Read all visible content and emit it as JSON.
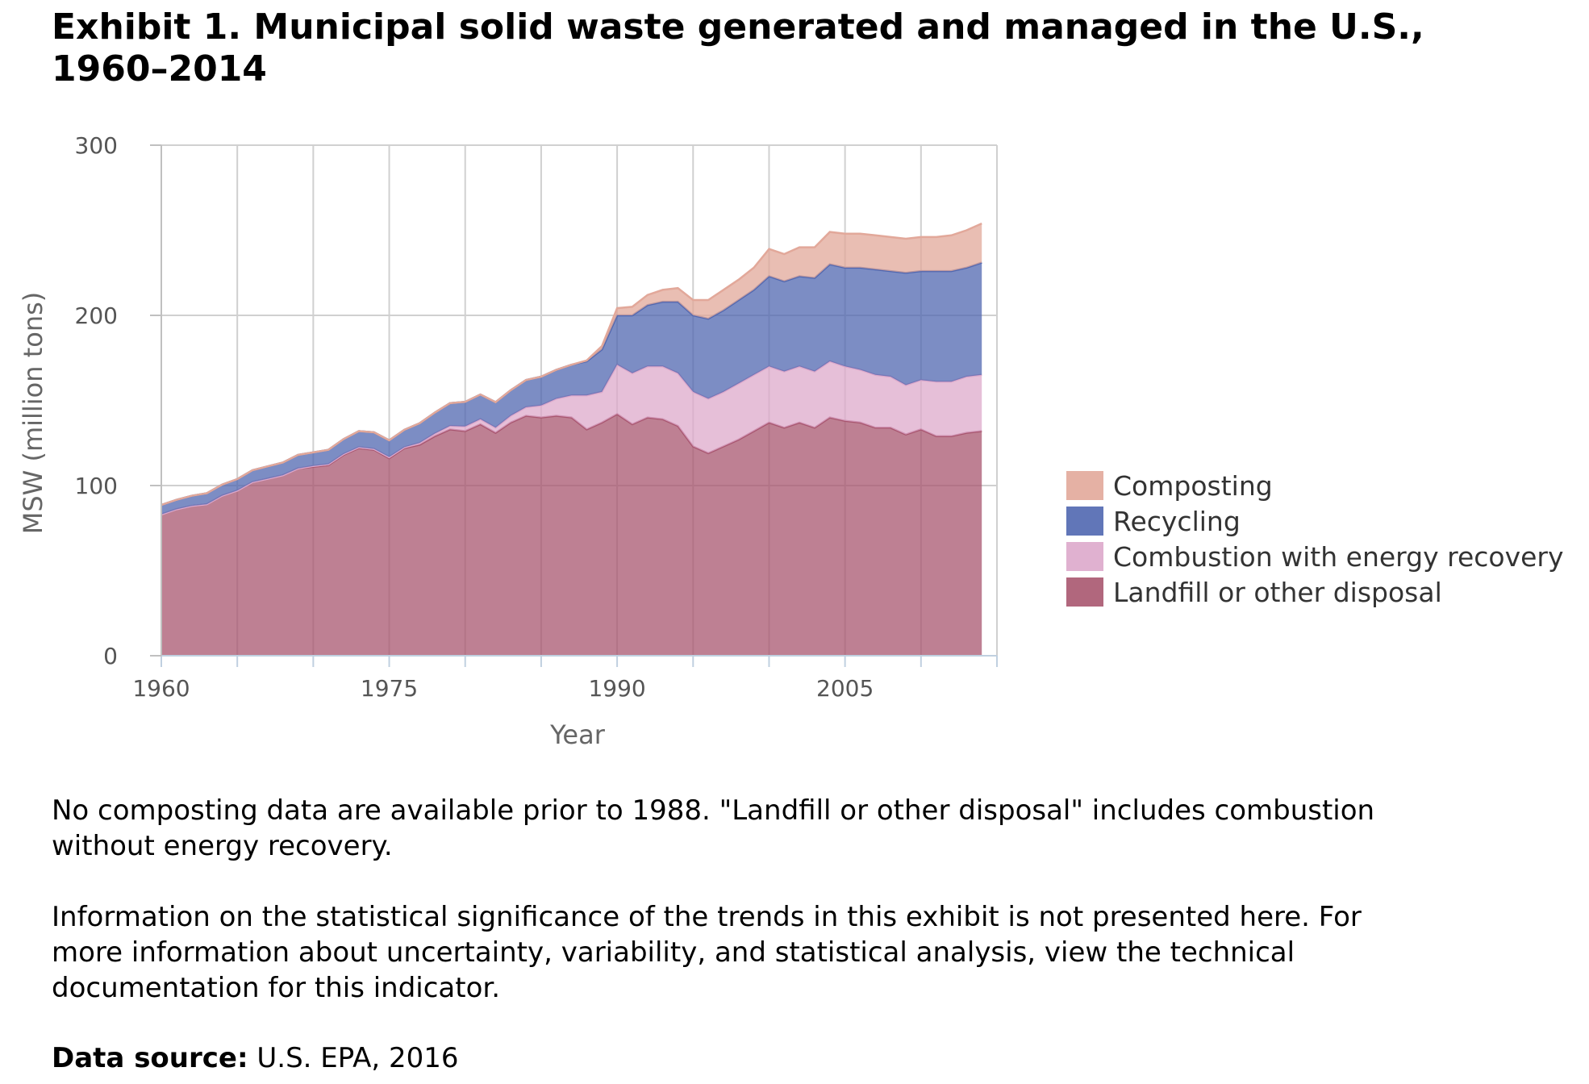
{
  "title": "Exhibit 1. Municipal solid waste generated and managed in the U.S., 1960–2014",
  "notes": {
    "note1": "No composting data are available prior to 1988. \"Landfill or other disposal\" includes combustion without energy recovery.",
    "note2": "Information on the statistical significance of the trends in this exhibit is not presented here. For more information about uncertainty, variability, and statistical analysis, view the technical documentation for this indicator.",
    "source_label": "Data source:",
    "source_value": " U.S. EPA, 2016"
  },
  "chart_data": {
    "type": "area",
    "stacked": true,
    "xlabel": "Year",
    "ylabel": "MSW (million tons)",
    "xlim": [
      1960,
      2015
    ],
    "ylim": [
      0,
      300
    ],
    "x_ticks": [
      1960,
      1975,
      1990,
      2005
    ],
    "y_ticks": [
      0,
      100,
      200,
      300
    ],
    "grid": true,
    "legend_position": "right",
    "x": [
      1960,
      1961,
      1962,
      1963,
      1964,
      1965,
      1966,
      1967,
      1968,
      1969,
      1970,
      1971,
      1972,
      1973,
      1974,
      1975,
      1976,
      1977,
      1978,
      1979,
      1980,
      1981,
      1982,
      1983,
      1984,
      1985,
      1986,
      1987,
      1988,
      1989,
      1990,
      1991,
      1992,
      1993,
      1994,
      1995,
      1996,
      1997,
      1998,
      1999,
      2000,
      2001,
      2002,
      2003,
      2004,
      2005,
      2006,
      2007,
      2008,
      2009,
      2010,
      2011,
      2012,
      2013,
      2014
    ],
    "series": [
      {
        "name": "Landfill or other disposal",
        "color": "#a8566f",
        "values": [
          83,
          86,
          88,
          89,
          94,
          97,
          102,
          104,
          106,
          110,
          111,
          112,
          118,
          122,
          121,
          116,
          122,
          124,
          129,
          133,
          132,
          136,
          131,
          137,
          141,
          140,
          141,
          140,
          133,
          137,
          142,
          136,
          140,
          139,
          135,
          123,
          119,
          123,
          127,
          132,
          137,
          134,
          137,
          134,
          140,
          138,
          137,
          134,
          134,
          130,
          133,
          129,
          129,
          131,
          132
        ]
      },
      {
        "name": "Combustion with energy recovery",
        "color": "#dda9cb",
        "values": [
          0,
          0,
          0,
          0,
          0,
          0,
          0,
          0,
          0,
          0,
          0.5,
          0.5,
          0.5,
          0.5,
          0.5,
          0.7,
          0.5,
          1,
          1.5,
          2,
          2.7,
          3,
          3,
          4,
          5,
          7,
          10,
          13,
          20,
          18,
          29,
          30,
          30,
          31,
          31,
          32,
          32,
          32,
          33,
          33,
          33,
          33,
          33,
          33,
          33,
          32,
          31,
          31,
          30,
          29,
          29,
          32,
          32,
          33,
          33
        ]
      },
      {
        "name": "Recycling",
        "color": "#5067b0",
        "values": [
          5.6,
          5.6,
          6,
          6.5,
          6.5,
          6.8,
          7,
          7.3,
          7.5,
          8,
          8,
          8.5,
          8.8,
          9.5,
          9.8,
          9.9,
          10.3,
          11.6,
          12.4,
          13.4,
          14.5,
          14.5,
          15,
          15,
          16,
          17,
          17,
          18,
          20,
          25,
          29,
          34,
          36,
          38,
          42,
          45,
          47,
          48,
          49,
          50,
          53,
          53,
          53,
          55,
          57,
          58,
          60,
          62,
          62,
          66,
          64,
          65,
          65,
          64,
          66
        ]
      },
      {
        "name": "Composting",
        "color": "#e2a89a",
        "values": [
          0,
          0,
          0,
          0,
          0,
          0,
          0,
          0,
          0,
          0,
          0,
          0,
          0,
          0,
          0,
          0,
          0,
          0,
          0,
          0,
          0,
          0,
          0,
          0,
          0,
          0,
          0,
          0,
          0.5,
          2,
          4.2,
          5,
          6,
          7,
          8,
          9,
          11,
          12,
          12,
          13,
          16,
          16,
          17,
          18,
          19,
          20,
          20,
          20,
          20,
          20,
          20,
          20,
          21,
          22,
          23
        ]
      }
    ]
  }
}
